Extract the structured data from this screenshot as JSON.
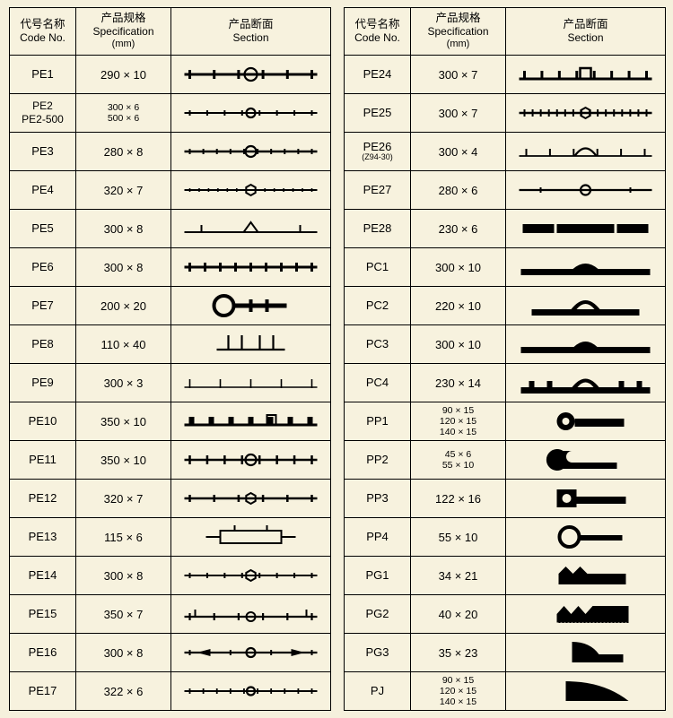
{
  "headers": {
    "code_cn": "代号名称",
    "code_en": "Code No.",
    "spec_cn": "产品规格",
    "spec_en": "Specification",
    "spec_unit": "(mm)",
    "sect_cn": "产品断面",
    "sect_en": "Section"
  },
  "ink": "#000000",
  "bg": "#f7f2de",
  "left": [
    {
      "code": "PE1",
      "spec": "290 × 10",
      "shape": "bar_circle_ticks"
    },
    {
      "code": "PE2\nPE2-500",
      "spec": "300 × 6\n500 × 6",
      "shape": "bar_smallcircle_ticks"
    },
    {
      "code": "PE3",
      "spec": "280 × 8",
      "shape": "bar_circle_dashes"
    },
    {
      "code": "PE4",
      "spec": "320 × 7",
      "shape": "bar_hex_dots"
    },
    {
      "code": "PE5",
      "spec": "300 × 8",
      "shape": "bar_triangle_feet"
    },
    {
      "code": "PE6",
      "spec": "300 × 8",
      "shape": "bar_ticks_dense"
    },
    {
      "code": "PE7",
      "spec": "200 × 20",
      "shape": "bigcircle_key"
    },
    {
      "code": "PE8",
      "spec": "110 × 40",
      "shape": "u_bracket"
    },
    {
      "code": "PE9",
      "spec": "300 × 3",
      "shape": "thin_ticks"
    },
    {
      "code": "PE10",
      "spec": "350 × 10",
      "shape": "bar_squareticks"
    },
    {
      "code": "PE11",
      "spec": "350 × 10",
      "shape": "bar_circle_ticks2"
    },
    {
      "code": "PE12",
      "spec": "320 × 7",
      "shape": "bar_hex_ticks"
    },
    {
      "code": "PE13",
      "spec": "115 × 6",
      "shape": "double_bracket"
    },
    {
      "code": "PE14",
      "spec": "300 × 8",
      "shape": "bar_hex_dashes"
    },
    {
      "code": "PE15",
      "spec": "350 × 7",
      "shape": "bar_circle_feet"
    },
    {
      "code": "PE16",
      "spec": "300 × 8",
      "shape": "bar_bowtie_circle"
    },
    {
      "code": "PE17",
      "spec": "322 × 6",
      "shape": "bar_smallcircle_dashes"
    }
  ],
  "right": [
    {
      "code": "PE24",
      "spec": "300 × 7",
      "shape": "bar_squareticks_up"
    },
    {
      "code": "PE25",
      "spec": "300 × 7",
      "shape": "bar_hex_denseticks"
    },
    {
      "code": "PE26",
      "sub": "(Z94-30)",
      "spec": "300 × 4",
      "shape": "bar_arch_ticks"
    },
    {
      "code": "PE27",
      "spec": "280 × 6",
      "shape": "bar_circle_plain"
    },
    {
      "code": "PE28",
      "spec": "230 × 6",
      "shape": "thick_bar_notch"
    },
    {
      "code": "PC1",
      "spec": "300 × 10",
      "shape": "heavy_arch_small"
    },
    {
      "code": "PC2",
      "spec": "220 × 10",
      "shape": "heavy_arch_tall"
    },
    {
      "code": "PC3",
      "spec": "300 × 10",
      "shape": "heavy_arch_med"
    },
    {
      "code": "PC4",
      "spec": "230 × 14",
      "shape": "heavy_arch_feet"
    },
    {
      "code": "PP1",
      "spec": "90 × 15\n120 × 15\n140 × 15",
      "shape": "solid_circle_tongue"
    },
    {
      "code": "PP2",
      "spec": "45 × 6\n55 × 10",
      "shape": "solid_hook"
    },
    {
      "code": "PP3",
      "spec": "122 × 16",
      "shape": "solid_circlehole_tongue"
    },
    {
      "code": "PP4",
      "spec": "55 × 10",
      "shape": "ring_tongue"
    },
    {
      "code": "PG1",
      "spec": "34 × 21",
      "shape": "saw_block1"
    },
    {
      "code": "PG2",
      "spec": "40 × 20",
      "shape": "saw_block2"
    },
    {
      "code": "PG3",
      "spec": "35 × 23",
      "shape": "fin_block"
    },
    {
      "code": "PJ",
      "spec": "90 × 15\n120 × 15\n140 × 15",
      "shape": "wedge_block"
    }
  ]
}
